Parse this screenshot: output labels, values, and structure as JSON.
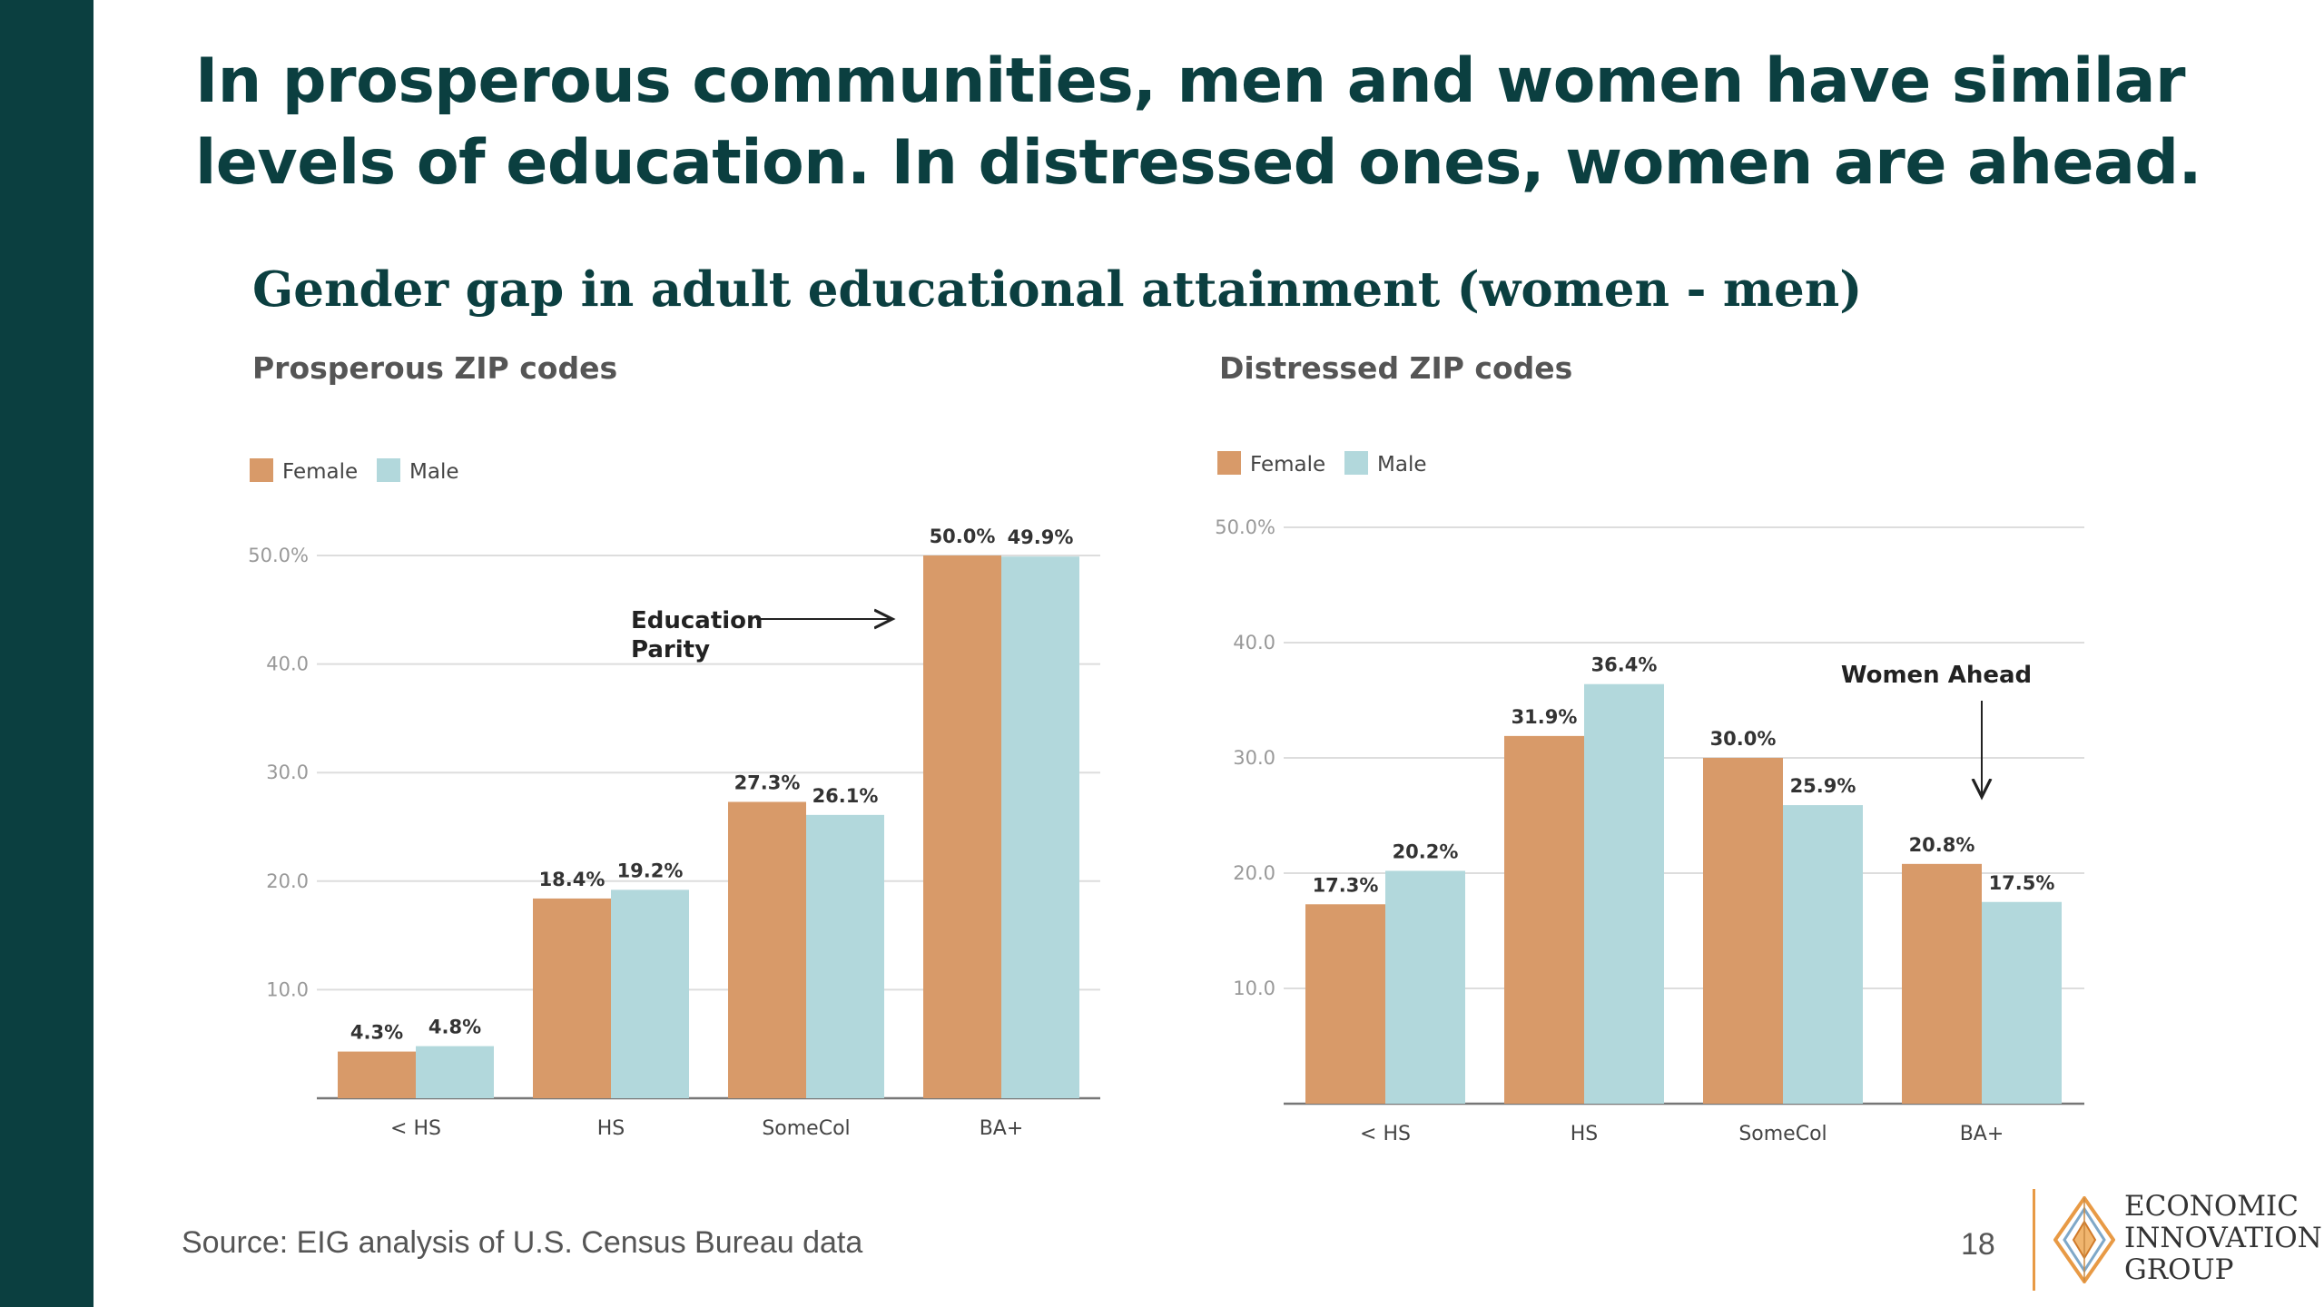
{
  "headline": "In prosperous communities, men and women have similar levels of education. In distressed ones, women are ahead.",
  "chart_title": "Gender gap in adult educational attainment (women - men)",
  "colors": {
    "female": "#d89a69",
    "male": "#b2d8dc",
    "brand_dark": "#0b3f40"
  },
  "legend": {
    "female": "Female",
    "male": "Male"
  },
  "chart_data": [
    {
      "type": "bar",
      "title": "Prosperous ZIP codes",
      "categories": [
        "< HS",
        "HS",
        "SomeCol",
        "BA+"
      ],
      "series": [
        {
          "name": "Female",
          "values": [
            4.3,
            18.4,
            27.3,
            50.0
          ],
          "labels": [
            "4.3%",
            "18.4%",
            "27.3%",
            "50.0%"
          ]
        },
        {
          "name": "Male",
          "values": [
            4.8,
            19.2,
            26.1,
            49.9
          ],
          "labels": [
            "4.8%",
            "19.2%",
            "26.1%",
            "49.9%"
          ]
        }
      ],
      "yticks": [
        10,
        20,
        30,
        40,
        50
      ],
      "ytick_labels": [
        "10.0",
        "20.0",
        "30.0",
        "40.0",
        "50.0%"
      ],
      "ylim": [
        0,
        50
      ],
      "grid": true,
      "annotation": {
        "lines": [
          "Education",
          "Parity"
        ],
        "arrow": "right"
      }
    },
    {
      "type": "bar",
      "title": "Distressed ZIP codes",
      "categories": [
        "< HS",
        "HS",
        "SomeCol",
        "BA+"
      ],
      "series": [
        {
          "name": "Female",
          "values": [
            17.3,
            31.9,
            30.0,
            20.8
          ],
          "labels": [
            "17.3%",
            "31.9%",
            "30.0%",
            "20.8%"
          ]
        },
        {
          "name": "Male",
          "values": [
            20.2,
            36.4,
            25.9,
            17.5
          ],
          "labels": [
            "20.2%",
            "36.4%",
            "25.9%",
            "17.5%"
          ]
        }
      ],
      "yticks": [
        10,
        20,
        30,
        40,
        50
      ],
      "ytick_labels": [
        "10.0",
        "20.0",
        "30.0",
        "40.0",
        "50.0%"
      ],
      "ylim": [
        0,
        50
      ],
      "grid": true,
      "annotation": {
        "lines": [
          "Women Ahead"
        ],
        "arrow": "down"
      }
    }
  ],
  "source": "Source: EIG analysis of U.S. Census Bureau data",
  "page_number": "18",
  "logo": {
    "lines": [
      "ECONOMIC",
      "INNOVATION",
      "GROUP"
    ]
  }
}
